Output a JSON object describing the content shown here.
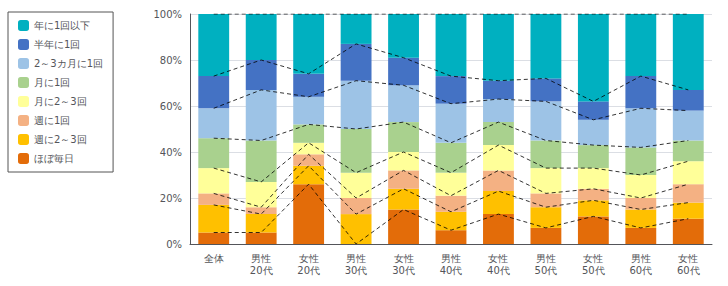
{
  "chart_data": {
    "type": "bar",
    "stacked": true,
    "categories": [
      "全体",
      "男性\n20代",
      "女性\n20代",
      "男性\n30代",
      "女性\n30代",
      "男性\n40代",
      "女性\n40代",
      "男性\n50代",
      "女性\n50代",
      "男性\n60代",
      "女性\n60代"
    ],
    "series": [
      {
        "name": "年に1回以下",
        "color": "#00b0c0",
        "values": [
          27,
          20,
          26,
          13,
          19,
          27,
          29,
          28,
          38,
          27,
          33
        ]
      },
      {
        "name": "半年に1回",
        "color": "#4472c4",
        "values": [
          14,
          13,
          10,
          16,
          12,
          12,
          8,
          10,
          8,
          14,
          9
        ]
      },
      {
        "name": "2～3カ月に1回",
        "color": "#9dc3e6",
        "values": [
          13,
          22,
          12,
          21,
          16,
          17,
          10,
          17,
          11,
          17,
          13
        ]
      },
      {
        "name": "月に1回",
        "color": "#a9d18e",
        "values": [
          13,
          18,
          8,
          19,
          13,
          13,
          10,
          12,
          10,
          12,
          9
        ]
      },
      {
        "name": "月に2～3回",
        "color": "#ffff99",
        "values": [
          11,
          11,
          5,
          11,
          8,
          10,
          11,
          11,
          9,
          10,
          10
        ]
      },
      {
        "name": "週に1回",
        "color": "#f4b183",
        "values": [
          5,
          3,
          5,
          7,
          8,
          7,
          9,
          6,
          5,
          5,
          8
        ]
      },
      {
        "name": "週に2～3回",
        "color": "#ffc000",
        "values": [
          12,
          8,
          8,
          13,
          9,
          8,
          10,
          9,
          7,
          8,
          7
        ]
      },
      {
        "name": "ほぼ毎日",
        "color": "#e36c09",
        "values": [
          5,
          5,
          26,
          0,
          15,
          6,
          13,
          7,
          12,
          7,
          11
        ]
      }
    ],
    "ylim": [
      0,
      100
    ],
    "yticks": [
      {
        "value": 0,
        "label": "0%"
      },
      {
        "value": 20,
        "label": "20%"
      },
      {
        "value": 40,
        "label": "40%"
      },
      {
        "value": 60,
        "label": "60%"
      },
      {
        "value": 80,
        "label": "80%"
      },
      {
        "value": 100,
        "label": "100%"
      }
    ],
    "grid": true,
    "legend": "left"
  }
}
